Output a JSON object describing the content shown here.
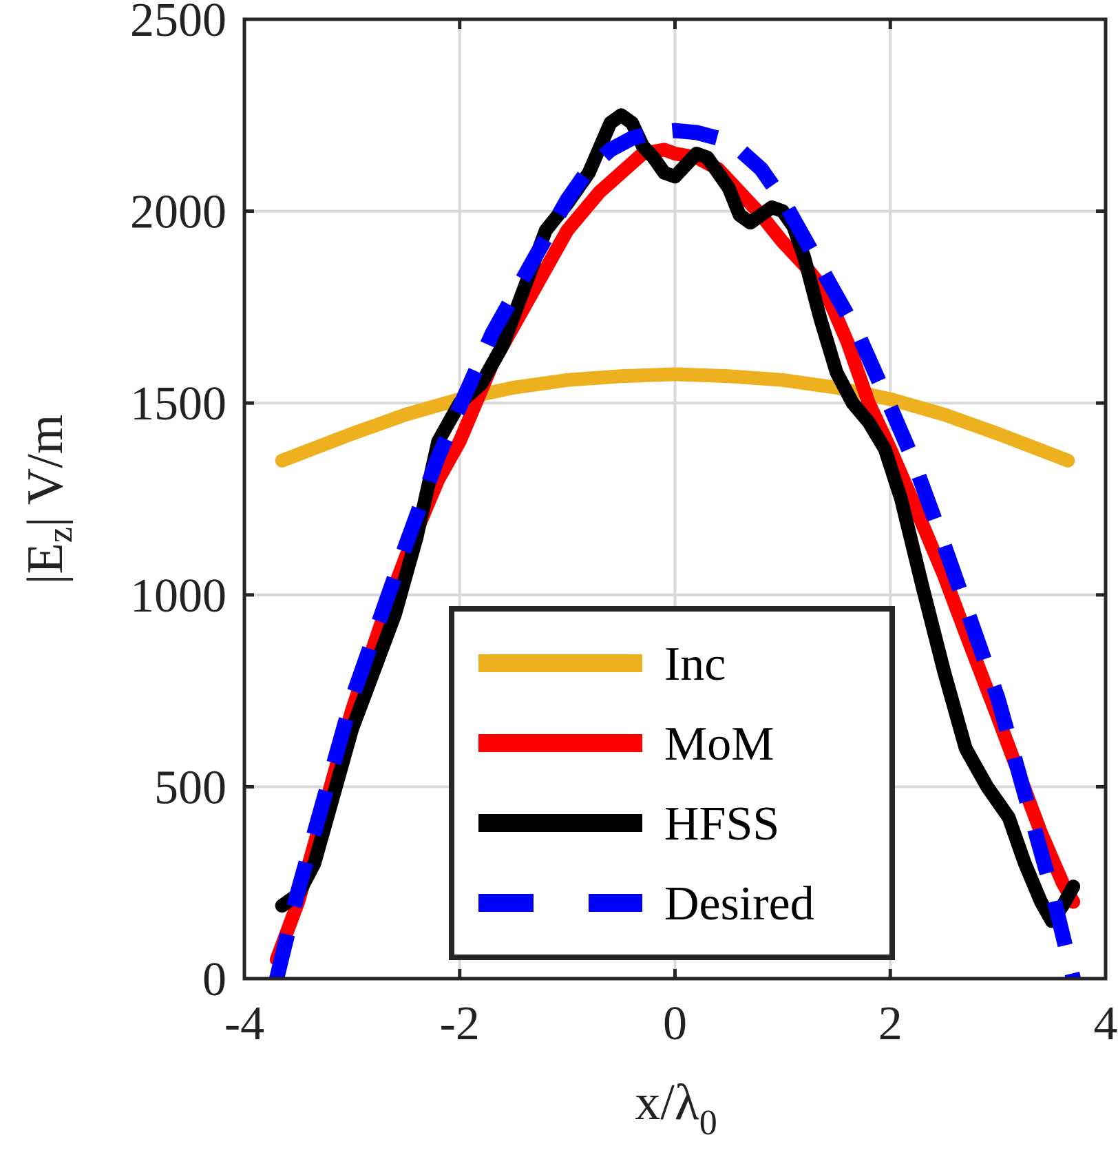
{
  "chart_data": {
    "type": "line",
    "title": "",
    "xlabel": "x/λ",
    "xlabel_sub": "0",
    "ylabel_parts": [
      "|E",
      "z",
      "| V/m"
    ],
    "xlim": [
      -4,
      4
    ],
    "ylim": [
      0,
      2500
    ],
    "xticks": [
      -4,
      -2,
      0,
      2,
      4
    ],
    "yticks": [
      0,
      500,
      1000,
      1500,
      2000,
      2500
    ],
    "xtick_labels": [
      "-4",
      "-2",
      "0",
      "2",
      "4"
    ],
    "ytick_labels": [
      "0",
      "500",
      "1000",
      "1500",
      "2000",
      "2500"
    ],
    "grid": true,
    "legend_position": "bottom-center",
    "series": [
      {
        "name": "Inc",
        "color": "#EDB120",
        "style": "solid",
        "x": [
          -3.65,
          -3.0,
          -2.5,
          -2.0,
          -1.5,
          -1.0,
          -0.5,
          0.0,
          0.5,
          1.0,
          1.5,
          2.0,
          2.5,
          3.0,
          3.65
        ],
        "y": [
          1350,
          1420,
          1470,
          1510,
          1540,
          1560,
          1570,
          1575,
          1570,
          1560,
          1540,
          1510,
          1470,
          1420,
          1350
        ]
      },
      {
        "name": "MoM",
        "color": "#FF0000",
        "style": "solid",
        "x": [
          -3.7,
          -3.5,
          -3.2,
          -3.0,
          -2.7,
          -2.5,
          -2.2,
          -2.0,
          -1.7,
          -1.5,
          -1.2,
          -1.0,
          -0.7,
          -0.5,
          -0.3,
          -0.1,
          0.0,
          0.2,
          0.4,
          0.6,
          0.8,
          1.0,
          1.2,
          1.4,
          1.6,
          1.8,
          2.0,
          2.2,
          2.5,
          2.7,
          3.0,
          3.2,
          3.4,
          3.6,
          3.7
        ],
        "y": [
          50,
          200,
          500,
          700,
          950,
          1100,
          1300,
          1400,
          1600,
          1700,
          1850,
          1950,
          2050,
          2100,
          2150,
          2160,
          2150,
          2140,
          2110,
          2050,
          1990,
          1920,
          1860,
          1790,
          1660,
          1500,
          1380,
          1250,
          1050,
          900,
          680,
          530,
          380,
          250,
          200
        ]
      },
      {
        "name": "HFSS",
        "color": "#000000",
        "style": "solid",
        "x": [
          -3.65,
          -3.5,
          -3.35,
          -3.2,
          -3.0,
          -2.8,
          -2.6,
          -2.4,
          -2.2,
          -2.0,
          -1.8,
          -1.6,
          -1.4,
          -1.2,
          -1.0,
          -0.8,
          -0.6,
          -0.5,
          -0.4,
          -0.3,
          -0.2,
          -0.1,
          0.0,
          0.1,
          0.2,
          0.3,
          0.4,
          0.5,
          0.6,
          0.7,
          0.8,
          0.9,
          1.0,
          1.1,
          1.2,
          1.35,
          1.5,
          1.65,
          1.8,
          1.95,
          2.1,
          2.3,
          2.5,
          2.7,
          2.9,
          3.1,
          3.25,
          3.4,
          3.5,
          3.6,
          3.7
        ],
        "y": [
          190,
          220,
          300,
          450,
          650,
          800,
          950,
          1150,
          1400,
          1500,
          1550,
          1650,
          1800,
          1950,
          2020,
          2100,
          2230,
          2250,
          2230,
          2170,
          2140,
          2100,
          2090,
          2120,
          2150,
          2140,
          2100,
          2060,
          1990,
          1970,
          1990,
          2010,
          2000,
          1960,
          1880,
          1720,
          1580,
          1500,
          1450,
          1380,
          1250,
          1020,
          800,
          600,
          500,
          420,
          300,
          200,
          150,
          190,
          240
        ]
      },
      {
        "name": "Desired",
        "color": "#0000FF",
        "style": "dashed",
        "x": [
          -3.7,
          -3.5,
          -3.2,
          -3.0,
          -2.7,
          -2.5,
          -2.2,
          -2.0,
          -1.7,
          -1.5,
          -1.2,
          -1.0,
          -0.8,
          -0.6,
          -0.4,
          -0.2,
          0.0,
          0.2,
          0.4,
          0.6,
          0.8,
          1.0,
          1.2,
          1.5,
          1.7,
          2.0,
          2.2,
          2.5,
          2.7,
          3.0,
          3.2,
          3.5,
          3.7
        ],
        "y": [
          0,
          230,
          530,
          730,
          970,
          1130,
          1360,
          1490,
          1680,
          1780,
          1930,
          2030,
          2110,
          2160,
          2190,
          2205,
          2210,
          2205,
          2190,
          2160,
          2110,
          2030,
          1930,
          1780,
          1680,
          1490,
          1360,
          1130,
          970,
          730,
          530,
          230,
          0
        ]
      }
    ]
  }
}
